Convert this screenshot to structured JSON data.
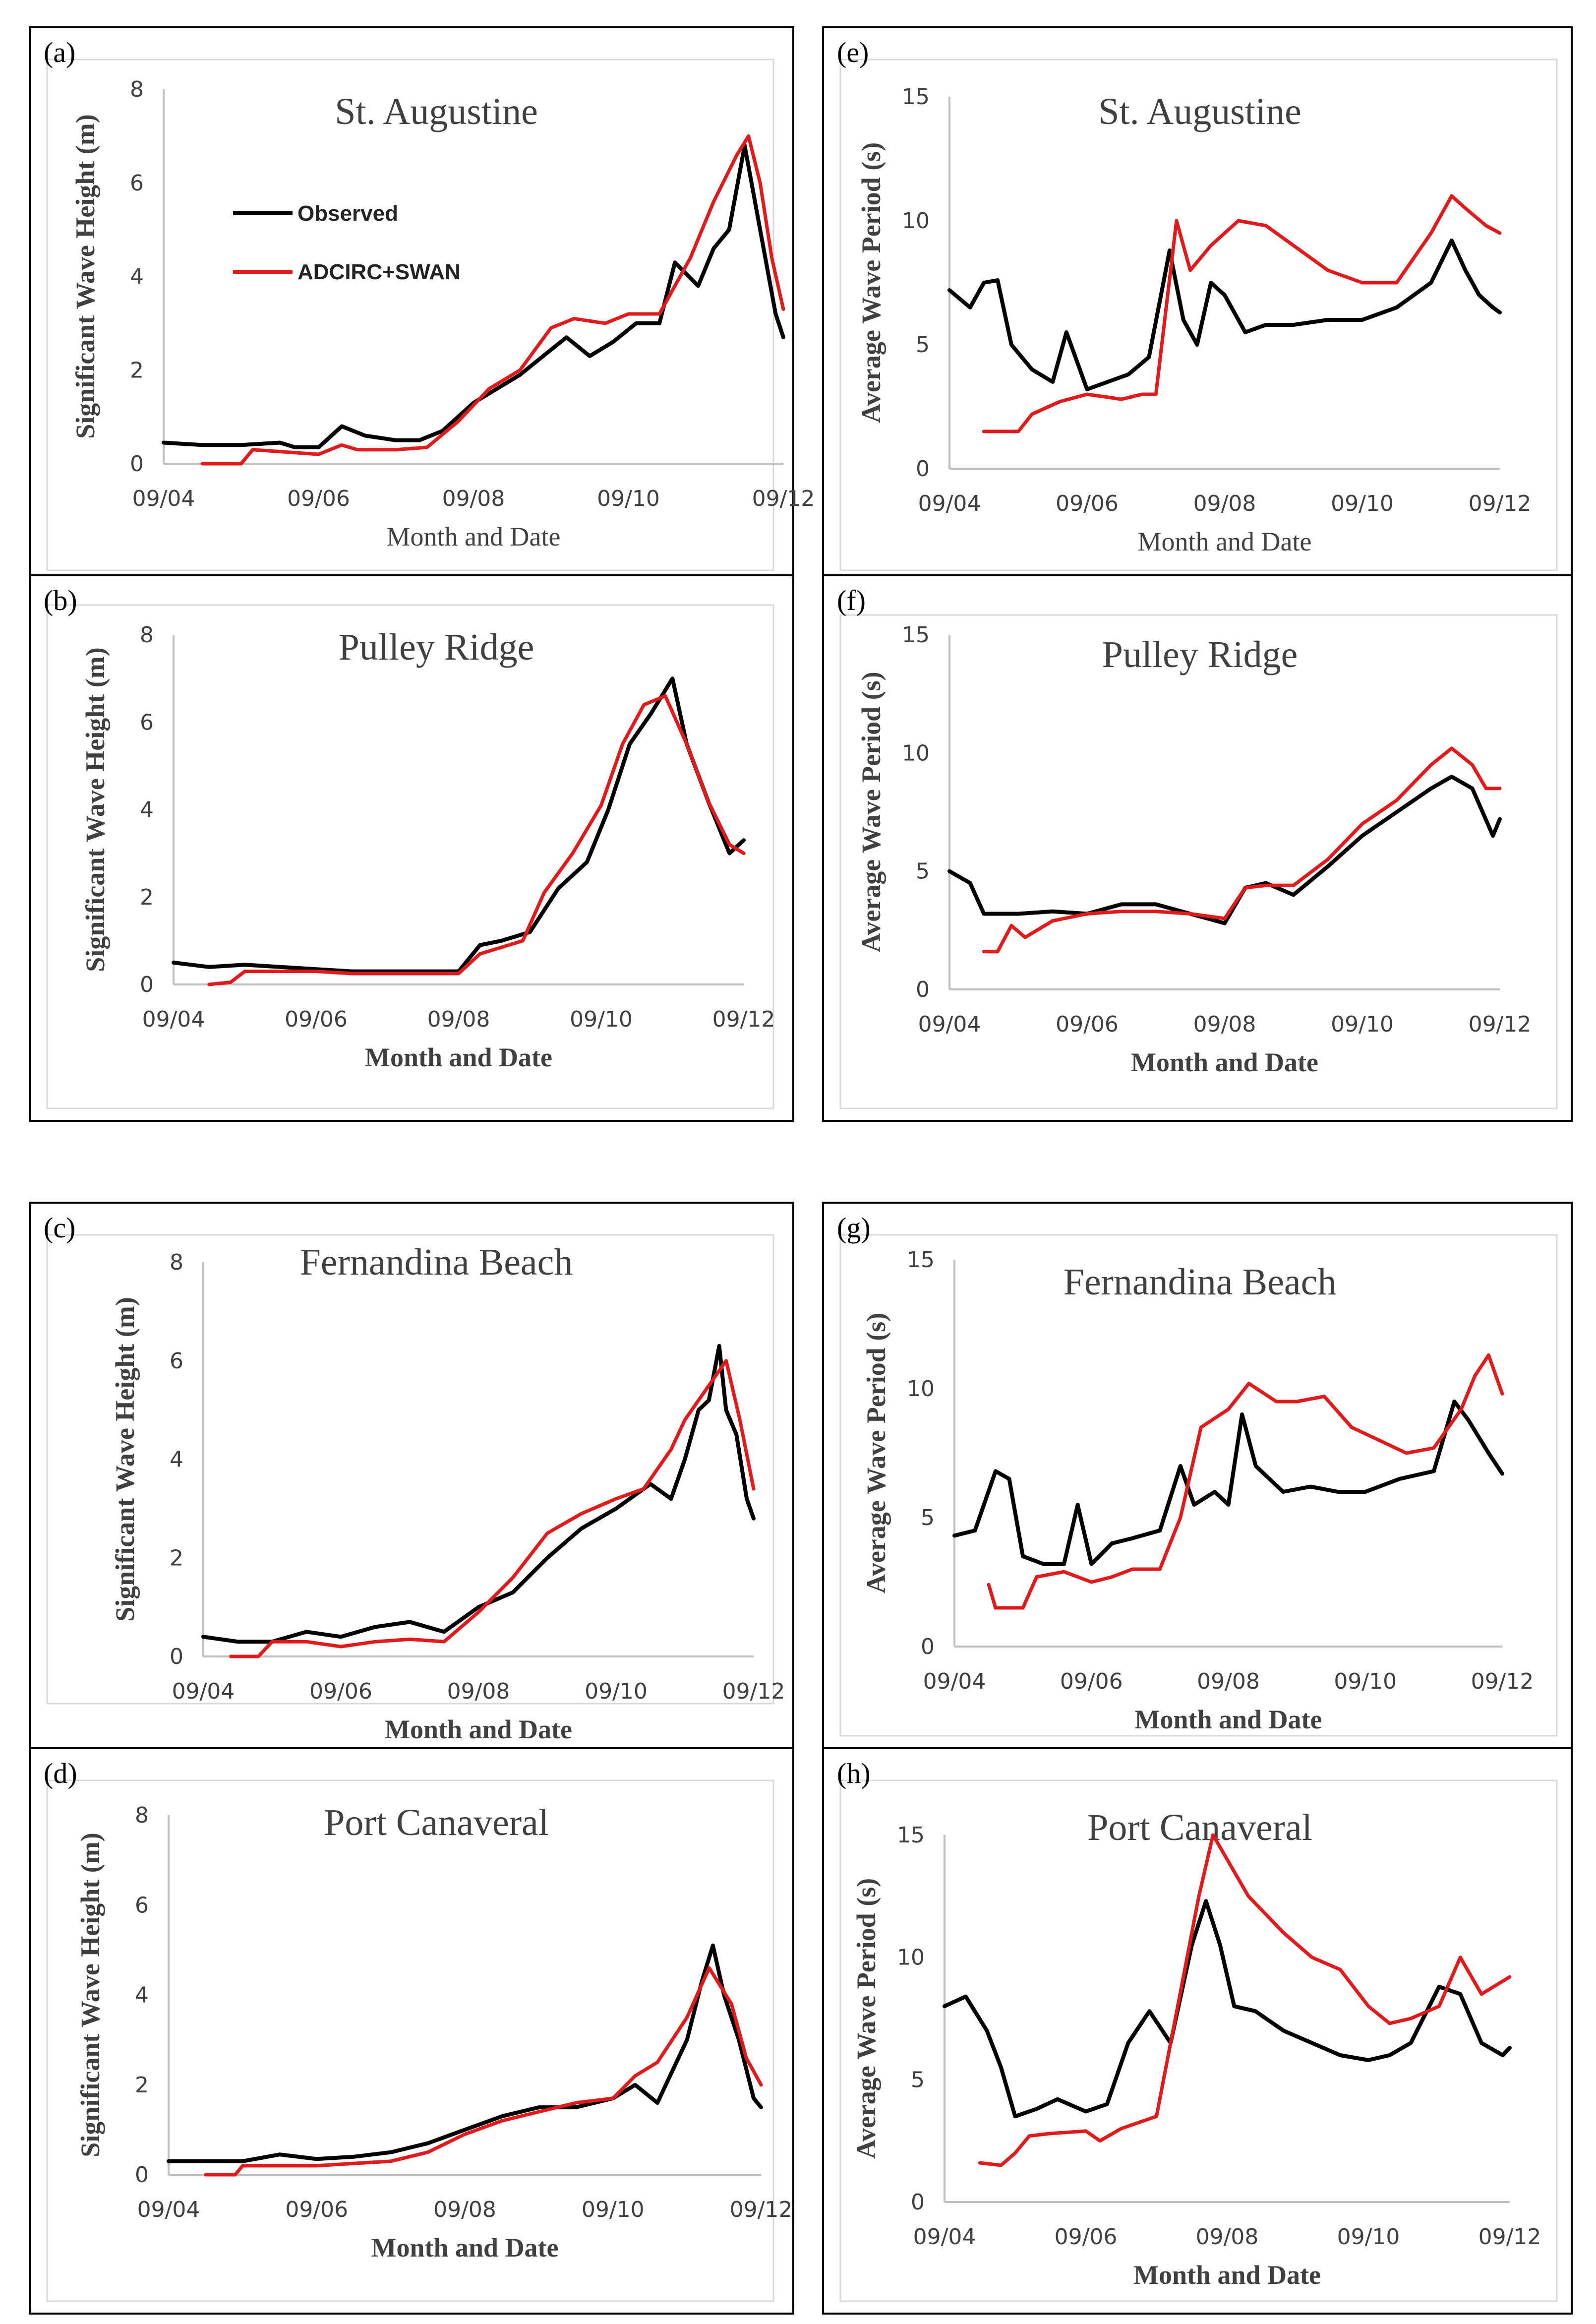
{
  "figure": {
    "colors": {
      "observed": "#000000",
      "model": "#e31a1c",
      "axis": "#bfbfbf",
      "frame": "#000000"
    },
    "legend": {
      "observed": "Observed",
      "model": "ADCIRC+SWAN"
    }
  },
  "chart_data": [
    {
      "panel": "(a)",
      "type": "line",
      "title": "St. Augustine",
      "xlabel": "Month and Date",
      "ylabel": "Significant Wave Height (m)",
      "xlim": [
        0,
        8
      ],
      "ylim": [
        0,
        8
      ],
      "yticks": [
        "0",
        "2",
        "4",
        "6",
        "8"
      ],
      "xticks": [
        "09/04",
        "09/06",
        "09/08",
        "09/10",
        "09/12"
      ],
      "series": [
        {
          "name": "Observed",
          "x": [
            0,
            0.5,
            1.0,
            1.5,
            1.7,
            2.0,
            2.3,
            2.6,
            3.0,
            3.3,
            3.6,
            4.0,
            4.3,
            4.6,
            4.9,
            5.2,
            5.5,
            5.8,
            6.1,
            6.4,
            6.6,
            6.9,
            7.1,
            7.3,
            7.5,
            7.7,
            7.9,
            8.0
          ],
          "y": [
            0.45,
            0.4,
            0.4,
            0.45,
            0.35,
            0.35,
            0.8,
            0.6,
            0.5,
            0.5,
            0.7,
            1.3,
            1.6,
            1.9,
            2.3,
            2.7,
            2.3,
            2.6,
            3.0,
            3.0,
            4.3,
            3.8,
            4.6,
            5.0,
            6.8,
            5.0,
            3.2,
            2.7
          ]
        },
        {
          "name": "ADCIRC+SWAN",
          "x": [
            0.5,
            1.0,
            1.15,
            2.0,
            2.3,
            2.5,
            3.0,
            3.4,
            3.8,
            4.2,
            4.6,
            5.0,
            5.3,
            5.7,
            6.0,
            6.4,
            6.8,
            7.1,
            7.4,
            7.55,
            7.7,
            7.85,
            8.0
          ],
          "y": [
            0,
            0,
            0.3,
            0.2,
            0.4,
            0.3,
            0.3,
            0.35,
            0.9,
            1.6,
            2.0,
            2.9,
            3.1,
            3.0,
            3.2,
            3.2,
            4.4,
            5.6,
            6.6,
            7.0,
            6.0,
            4.4,
            3.3
          ]
        }
      ]
    },
    {
      "panel": "(b)",
      "type": "line",
      "title": "Pulley Ridge",
      "xlabel": "Month and Date",
      "ylabel": "Significant Wave Height (m)",
      "xlim": [
        0,
        8
      ],
      "ylim": [
        0,
        8
      ],
      "yticks": [
        "0",
        "2",
        "4",
        "6",
        "8"
      ],
      "xticks": [
        "09/04",
        "09/06",
        "09/08",
        "09/10",
        "09/12"
      ],
      "series": [
        {
          "name": "Observed",
          "x": [
            0,
            0.5,
            1.0,
            1.5,
            2.0,
            2.5,
            3.0,
            3.5,
            4.0,
            4.3,
            4.6,
            5.0,
            5.4,
            5.8,
            6.1,
            6.4,
            6.7,
            7.0,
            7.2,
            7.5,
            7.8,
            8.0
          ],
          "y": [
            0.5,
            0.4,
            0.45,
            0.4,
            0.35,
            0.3,
            0.3,
            0.3,
            0.3,
            0.9,
            1.0,
            1.2,
            2.2,
            2.8,
            4.0,
            5.5,
            6.2,
            7.0,
            5.5,
            4.2,
            3.0,
            3.3
          ]
        },
        {
          "name": "ADCIRC+SWAN",
          "x": [
            0.5,
            0.8,
            1.0,
            1.5,
            2.0,
            2.5,
            3.0,
            3.5,
            4.0,
            4.3,
            4.6,
            4.9,
            5.2,
            5.6,
            6.0,
            6.3,
            6.6,
            6.9,
            7.2,
            7.5,
            7.8,
            8.0
          ],
          "y": [
            0,
            0.05,
            0.3,
            0.3,
            0.3,
            0.25,
            0.25,
            0.25,
            0.25,
            0.7,
            0.85,
            1.0,
            2.1,
            3.0,
            4.1,
            5.5,
            6.4,
            6.6,
            5.5,
            4.2,
            3.2,
            3.0
          ]
        }
      ]
    },
    {
      "panel": "(c)",
      "type": "line",
      "title": "Fernandina Beach",
      "xlabel": "Month and Date",
      "ylabel": "Significant Wave Height (m)",
      "xlim": [
        0,
        8
      ],
      "ylim": [
        0,
        8
      ],
      "yticks": [
        "0",
        "2",
        "4",
        "6",
        "8"
      ],
      "xticks": [
        "09/04",
        "09/06",
        "09/08",
        "09/10",
        "09/12"
      ],
      "series": [
        {
          "name": "Observed",
          "x": [
            0,
            0.5,
            1.0,
            1.5,
            2.0,
            2.5,
            3.0,
            3.5,
            4.0,
            4.5,
            5.0,
            5.5,
            6.0,
            6.5,
            6.8,
            7.0,
            7.2,
            7.35,
            7.5,
            7.6,
            7.75,
            7.9,
            8.0
          ],
          "y": [
            0.4,
            0.3,
            0.3,
            0.5,
            0.4,
            0.6,
            0.7,
            0.5,
            1.0,
            1.3,
            2.0,
            2.6,
            3.0,
            3.5,
            3.2,
            4.0,
            5.0,
            5.2,
            6.3,
            5.0,
            4.5,
            3.2,
            2.8
          ]
        },
        {
          "name": "ADCIRC+SWAN",
          "x": [
            0.4,
            0.8,
            1.0,
            1.5,
            2.0,
            2.5,
            3.0,
            3.5,
            4.0,
            4.5,
            5.0,
            5.5,
            6.0,
            6.4,
            6.8,
            7.0,
            7.3,
            7.6,
            7.8,
            8.0
          ],
          "y": [
            0,
            0,
            0.3,
            0.3,
            0.2,
            0.3,
            0.35,
            0.3,
            0.9,
            1.6,
            2.5,
            2.9,
            3.2,
            3.4,
            4.2,
            4.8,
            5.4,
            6.0,
            4.8,
            3.4
          ]
        }
      ]
    },
    {
      "panel": "(d)",
      "type": "line",
      "title": "Port Canaveral",
      "xlabel": "Month and Date",
      "ylabel": "Significant Wave Height (m)",
      "xlim": [
        0,
        8
      ],
      "ylim": [
        0,
        8
      ],
      "yticks": [
        "0",
        "2",
        "4",
        "6",
        "8"
      ],
      "xticks": [
        "09/04",
        "09/06",
        "09/08",
        "09/10",
        "09/12"
      ],
      "series": [
        {
          "name": "Observed",
          "x": [
            0,
            0.5,
            1.0,
            1.5,
            2.0,
            2.5,
            3.0,
            3.5,
            4.0,
            4.5,
            5.0,
            5.5,
            6.0,
            6.3,
            6.6,
            7.0,
            7.2,
            7.35,
            7.5,
            7.7,
            7.9,
            8.0
          ],
          "y": [
            0.3,
            0.3,
            0.3,
            0.45,
            0.35,
            0.4,
            0.5,
            0.7,
            1.0,
            1.3,
            1.5,
            1.5,
            1.7,
            2.0,
            1.6,
            3.0,
            4.3,
            5.1,
            4.0,
            3.0,
            1.7,
            1.5
          ]
        },
        {
          "name": "ADCIRC+SWAN",
          "x": [
            0.5,
            0.9,
            1.0,
            1.5,
            2.0,
            2.5,
            3.0,
            3.5,
            4.0,
            4.5,
            5.0,
            5.5,
            6.0,
            6.3,
            6.6,
            7.0,
            7.3,
            7.6,
            7.8,
            8.0
          ],
          "y": [
            0,
            0,
            0.2,
            0.2,
            0.2,
            0.25,
            0.3,
            0.5,
            0.9,
            1.2,
            1.4,
            1.6,
            1.7,
            2.2,
            2.5,
            3.5,
            4.6,
            3.8,
            2.6,
            2.0
          ]
        }
      ]
    },
    {
      "panel": "(e)",
      "type": "line",
      "title": "St. Augustine",
      "xlabel": "Month and Date",
      "ylabel": "Average Wave Period (s)",
      "xlim": [
        0,
        8
      ],
      "ylim": [
        0,
        15
      ],
      "yticks": [
        "0",
        "5",
        "10",
        "15"
      ],
      "xticks": [
        "09/04",
        "09/06",
        "09/08",
        "09/10",
        "09/12"
      ],
      "series": [
        {
          "name": "Observed",
          "x": [
            0,
            0.3,
            0.5,
            0.7,
            0.9,
            1.2,
            1.5,
            1.7,
            2.0,
            2.3,
            2.6,
            2.9,
            3.2,
            3.4,
            3.6,
            3.8,
            4.0,
            4.3,
            4.6,
            5.0,
            5.5,
            6.0,
            6.5,
            7.0,
            7.3,
            7.5,
            7.7,
            7.9,
            8.0
          ],
          "y": [
            7.2,
            6.5,
            7.5,
            7.6,
            5.0,
            4.0,
            3.5,
            5.5,
            3.2,
            3.5,
            3.8,
            4.5,
            8.8,
            6.0,
            5.0,
            7.5,
            7.0,
            5.5,
            5.8,
            5.8,
            6.0,
            6.0,
            6.5,
            7.5,
            9.2,
            8.0,
            7.0,
            6.5,
            6.3
          ]
        },
        {
          "name": "ADCIRC+SWAN",
          "x": [
            0.5,
            1.0,
            1.2,
            1.6,
            2.0,
            2.5,
            2.8,
            3.0,
            3.3,
            3.5,
            3.8,
            4.2,
            4.6,
            5.0,
            5.5,
            6.0,
            6.5,
            7.0,
            7.3,
            7.5,
            7.8,
            8.0
          ],
          "y": [
            1.5,
            1.5,
            2.2,
            2.7,
            3.0,
            2.8,
            3.0,
            3.0,
            10.0,
            8.0,
            9.0,
            10.0,
            9.8,
            9.0,
            8.0,
            7.5,
            7.5,
            9.5,
            11.0,
            10.5,
            9.8,
            9.5
          ]
        }
      ]
    },
    {
      "panel": "(f)",
      "type": "line",
      "title": "Pulley Ridge",
      "xlabel": "Month and Date",
      "ylabel": "Average Wave Period (s)",
      "xlim": [
        0,
        8
      ],
      "ylim": [
        0,
        15
      ],
      "yticks": [
        "0",
        "5",
        "10",
        "15"
      ],
      "xticks": [
        "09/04",
        "09/06",
        "09/08",
        "09/10",
        "09/12"
      ],
      "series": [
        {
          "name": "Observed",
          "x": [
            0,
            0.3,
            0.5,
            1.0,
            1.5,
            2.0,
            2.5,
            3.0,
            3.5,
            4.0,
            4.3,
            4.6,
            5.0,
            5.5,
            6.0,
            6.5,
            7.0,
            7.3,
            7.6,
            7.9,
            8.0
          ],
          "y": [
            5.0,
            4.5,
            3.2,
            3.2,
            3.3,
            3.2,
            3.6,
            3.6,
            3.2,
            2.8,
            4.3,
            4.5,
            4.0,
            5.2,
            6.5,
            7.5,
            8.5,
            9.0,
            8.5,
            6.5,
            7.2
          ]
        },
        {
          "name": "ADCIRC+SWAN",
          "x": [
            0.5,
            0.7,
            0.9,
            1.1,
            1.5,
            2.0,
            2.5,
            3.0,
            3.5,
            4.0,
            4.3,
            4.6,
            5.0,
            5.5,
            6.0,
            6.5,
            7.0,
            7.3,
            7.6,
            7.8,
            8.0
          ],
          "y": [
            1.6,
            1.6,
            2.7,
            2.2,
            2.9,
            3.2,
            3.3,
            3.3,
            3.2,
            3.0,
            4.3,
            4.4,
            4.4,
            5.5,
            7.0,
            8.0,
            9.5,
            10.2,
            9.5,
            8.5,
            8.5
          ]
        }
      ]
    },
    {
      "panel": "(g)",
      "type": "line",
      "title": "Fernandina Beach",
      "xlabel": "Month and Date",
      "ylabel": "Average Wave Period (s)",
      "xlim": [
        0,
        8
      ],
      "ylim": [
        0,
        15
      ],
      "yticks": [
        "0",
        "5",
        "10",
        "15"
      ],
      "xticks": [
        "09/04",
        "09/06",
        "09/08",
        "09/10",
        "09/12"
      ],
      "series": [
        {
          "name": "Observed",
          "x": [
            0,
            0.3,
            0.6,
            0.8,
            1.0,
            1.3,
            1.6,
            1.8,
            2.0,
            2.3,
            2.6,
            3.0,
            3.3,
            3.5,
            3.8,
            4.0,
            4.2,
            4.4,
            4.8,
            5.2,
            5.6,
            6.0,
            6.5,
            7.0,
            7.3,
            7.5,
            7.8,
            8.0
          ],
          "y": [
            4.3,
            4.5,
            6.8,
            6.5,
            3.5,
            3.2,
            3.2,
            5.5,
            3.2,
            4.0,
            4.2,
            4.5,
            7.0,
            5.5,
            6.0,
            5.5,
            9.0,
            7.0,
            6.0,
            6.2,
            6.0,
            6.0,
            6.5,
            6.8,
            9.5,
            8.8,
            7.5,
            6.7
          ]
        },
        {
          "name": "ADCIRC+SWAN",
          "x": [
            0.5,
            0.6,
            1.0,
            1.2,
            1.6,
            2.0,
            2.3,
            2.6,
            3.0,
            3.3,
            3.6,
            4.0,
            4.3,
            4.7,
            5.0,
            5.4,
            5.8,
            6.2,
            6.6,
            7.0,
            7.4,
            7.6,
            7.8,
            8.0
          ],
          "y": [
            2.4,
            1.5,
            1.5,
            2.7,
            2.9,
            2.5,
            2.7,
            3.0,
            3.0,
            5.0,
            8.5,
            9.2,
            10.2,
            9.5,
            9.5,
            9.7,
            8.5,
            8.0,
            7.5,
            7.7,
            9.2,
            10.5,
            11.3,
            9.8
          ]
        }
      ]
    },
    {
      "panel": "(h)",
      "type": "line",
      "title": "Port Canaveral",
      "xlabel": "Month and Date",
      "ylabel": "Average Wave Period (s)",
      "xlim": [
        0,
        8
      ],
      "ylim": [
        0,
        15
      ],
      "yticks": [
        "0",
        "5",
        "10",
        "15"
      ],
      "xticks": [
        "09/04",
        "09/06",
        "09/08",
        "09/10",
        "09/12"
      ],
      "series": [
        {
          "name": "Observed",
          "x": [
            0,
            0.3,
            0.6,
            0.8,
            1.0,
            1.3,
            1.6,
            2.0,
            2.3,
            2.6,
            2.9,
            3.2,
            3.5,
            3.7,
            3.9,
            4.1,
            4.4,
            4.8,
            5.2,
            5.6,
            6.0,
            6.3,
            6.6,
            7.0,
            7.3,
            7.6,
            7.9,
            8.0
          ],
          "y": [
            8.0,
            8.4,
            7.0,
            5.5,
            3.5,
            3.8,
            4.2,
            3.7,
            4.0,
            6.5,
            7.8,
            6.5,
            10.5,
            12.3,
            10.5,
            8.0,
            7.8,
            7.0,
            6.5,
            6.0,
            5.8,
            6.0,
            6.5,
            8.8,
            8.5,
            6.5,
            6.0,
            6.3
          ]
        },
        {
          "name": "ADCIRC+SWAN",
          "x": [
            0.5,
            0.8,
            1.0,
            1.2,
            1.5,
            2.0,
            2.2,
            2.5,
            3.0,
            3.3,
            3.6,
            3.8,
            4.0,
            4.3,
            4.8,
            5.2,
            5.6,
            6.0,
            6.3,
            6.6,
            7.0,
            7.3,
            7.6,
            8.0
          ],
          "y": [
            1.6,
            1.5,
            2.0,
            2.7,
            2.8,
            2.9,
            2.5,
            3.0,
            3.5,
            8.0,
            12.5,
            15.0,
            14.0,
            12.5,
            11.0,
            10.0,
            9.5,
            8.0,
            7.3,
            7.5,
            8.0,
            10.0,
            8.5,
            9.2
          ]
        }
      ]
    }
  ]
}
